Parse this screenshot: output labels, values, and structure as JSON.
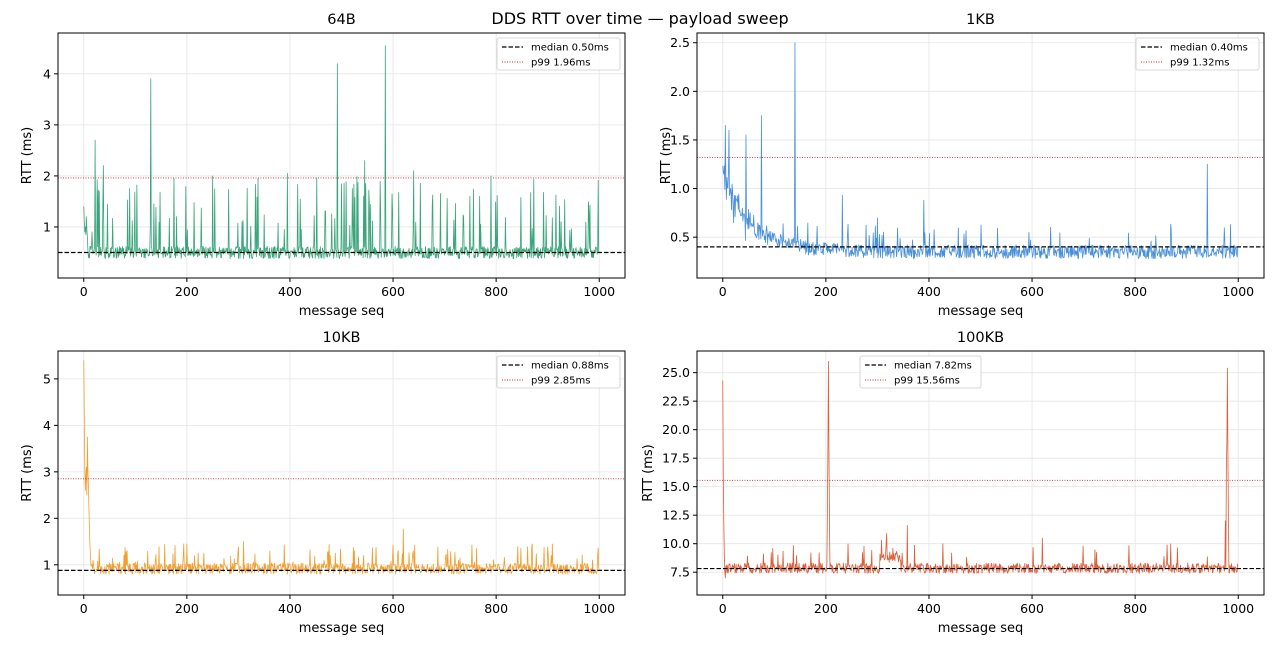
{
  "figure": {
    "title": "DDS RTT over time — payload sweep"
  },
  "colors": {
    "median_line": "#000000",
    "p99_line": "#d62728",
    "grid": "#e5e5e5"
  },
  "chart_data": [
    {
      "type": "line",
      "title": "64B",
      "xlabel": "message seq",
      "ylabel": "RTT (ms)",
      "xlim": [
        -50,
        1050
      ],
      "ylim": [
        0.0,
        4.8
      ],
      "xticks": [
        0,
        200,
        400,
        600,
        800,
        1000
      ],
      "yticks": [
        1,
        2,
        3,
        4
      ],
      "ytick_labels": [
        "1",
        "2",
        "3",
        "4"
      ],
      "grid": true,
      "color": "#3aa57a",
      "legend_position": "top-right",
      "legend": [
        "median 0.50ms",
        "p99 1.96ms"
      ],
      "median": 0.5,
      "p99": 1.96,
      "series_profile": {
        "n": 1000,
        "base": 0.5,
        "noise": 0.12,
        "floor": 0.26,
        "ceiling": 4.6,
        "start_values": [
          1.4,
          1.1,
          0.9,
          1.0,
          0.85,
          1.2,
          0.95,
          0.8
        ],
        "spike_rate": 0.11,
        "spike_min": 0.9,
        "spike_max": 2.0,
        "named_spikes": [
          [
            22,
            2.7
          ],
          [
            30,
            1.7
          ],
          [
            38,
            2.2
          ],
          [
            130,
            3.9
          ],
          [
            175,
            1.95
          ],
          [
            250,
            2.0
          ],
          [
            338,
            1.95
          ],
          [
            395,
            2.05
          ],
          [
            492,
            4.2
          ],
          [
            545,
            2.3
          ],
          [
            585,
            4.55
          ],
          [
            640,
            2.1
          ],
          [
            980,
            1.3
          ]
        ]
      }
    },
    {
      "type": "line",
      "title": "1KB",
      "xlabel": "message seq",
      "ylabel": "RTT (ms)",
      "xlim": [
        -50,
        1050
      ],
      "ylim": [
        0.08,
        2.6
      ],
      "xticks": [
        0,
        200,
        400,
        600,
        800,
        1000
      ],
      "yticks": [
        0.5,
        1.0,
        1.5,
        2.0,
        2.5
      ],
      "ytick_labels": [
        "0.5",
        "1.0",
        "1.5",
        "2.0",
        "2.5"
      ],
      "grid": true,
      "color": "#4a90d9",
      "legend_position": "top-right",
      "legend": [
        "median 0.40ms",
        "p99 1.32ms"
      ],
      "median": 0.4,
      "p99": 1.32,
      "series_profile": {
        "n": 1000,
        "decay_from": 1.15,
        "decay_tau": 55,
        "decay_noise": 0.18,
        "base": 0.35,
        "noise": 0.07,
        "floor": 0.24,
        "ceiling": 2.5,
        "spike_rate": 0.06,
        "spike_min": 0.45,
        "spike_max": 0.65,
        "named_spikes": [
          [
            5,
            1.65
          ],
          [
            12,
            1.6
          ],
          [
            45,
            1.55
          ],
          [
            75,
            1.75
          ],
          [
            140,
            2.5
          ],
          [
            232,
            0.93
          ],
          [
            300,
            0.7
          ],
          [
            390,
            0.88
          ],
          [
            636,
            0.6
          ],
          [
            940,
            1.25
          ],
          [
            985,
            0.63
          ]
        ]
      }
    },
    {
      "type": "line",
      "title": "10KB",
      "xlabel": "message seq",
      "ylabel": "RTT (ms)",
      "xlim": [
        -50,
        1050
      ],
      "ylim": [
        0.35,
        5.6
      ],
      "xticks": [
        0,
        200,
        400,
        600,
        800,
        1000
      ],
      "yticks": [
        1,
        2,
        3,
        4,
        5
      ],
      "ytick_labels": [
        "1",
        "2",
        "3",
        "4",
        "5"
      ],
      "grid": true,
      "color": "#f0a030",
      "legend_position": "top-right",
      "legend": [
        "median 0.88ms",
        "p99 2.85ms"
      ],
      "median": 0.88,
      "p99": 2.85,
      "series_profile": {
        "n": 1000,
        "start_values": [
          5.4,
          4.2,
          3.1,
          2.6,
          2.9,
          3.1,
          2.5,
          3.75,
          3.0,
          2.7,
          2.2,
          1.8,
          1.4,
          1.2
        ],
        "base": 0.92,
        "noise": 0.12,
        "floor": 0.7,
        "ceiling": 5.5,
        "spike_rate": 0.1,
        "spike_min": 1.05,
        "spike_max": 1.45,
        "named_spikes": [
          [
            200,
            1.45
          ],
          [
            310,
            1.5
          ],
          [
            620,
            1.77
          ],
          [
            900,
            1.38
          ]
        ]
      }
    },
    {
      "type": "line",
      "title": "100KB",
      "xlabel": "message seq",
      "ylabel": "RTT (ms)",
      "xlim": [
        -50,
        1050
      ],
      "ylim": [
        5.5,
        26.9
      ],
      "xticks": [
        0,
        200,
        400,
        600,
        800,
        1000
      ],
      "yticks": [
        7.5,
        10.0,
        12.5,
        15.0,
        17.5,
        20.0,
        22.5,
        25.0
      ],
      "ytick_labels": [
        "7.5",
        "10.0",
        "12.5",
        "15.0",
        "17.5",
        "20.0",
        "22.5",
        "25.0"
      ],
      "grid": true,
      "color": "#d9603b",
      "legend_position": "top-center",
      "legend": [
        "median 7.82ms",
        "p99 15.56ms"
      ],
      "median": 7.82,
      "p99": 15.56,
      "series_profile": {
        "n": 1000,
        "start_values": [
          24.3,
          16.0,
          12.0,
          9.0,
          7.5,
          7.0
        ],
        "base": 7.85,
        "noise": 0.45,
        "floor": 6.7,
        "ceiling": 26.5,
        "spike_rate": 0.02,
        "spike_min": 8.8,
        "spike_max": 10.0,
        "named_spikes": [
          [
            203,
            13.0
          ],
          [
            204,
            18.5
          ],
          [
            205,
            26.0
          ],
          [
            206,
            18.0
          ],
          [
            207,
            12.0
          ],
          [
            308,
            10.3
          ],
          [
            318,
            10.9
          ],
          [
            330,
            9.6
          ],
          [
            358,
            11.6
          ],
          [
            620,
            10.5
          ],
          [
            975,
            12.0
          ],
          [
            977,
            16.5
          ],
          [
            978,
            19.0
          ],
          [
            979,
            25.4
          ],
          [
            980,
            18.0
          ],
          [
            981,
            12.0
          ]
        ],
        "bumps": [
          [
            305,
            345,
            1.2
          ]
        ]
      }
    }
  ]
}
